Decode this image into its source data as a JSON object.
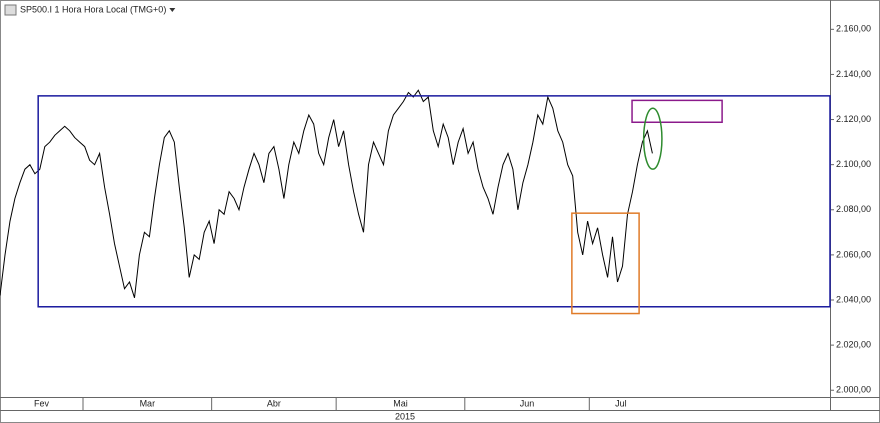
{
  "chart_data": {
    "type": "line",
    "title": "SP500.I 1 Hora Hora Local (TMG+0)",
    "year_label": "2015",
    "xlim": [
      40,
      240
    ],
    "ylim": [
      1997,
      2173
    ],
    "xticks": [
      {
        "value": 32,
        "label": "Fev"
      },
      {
        "value": 60,
        "label": "Mar"
      },
      {
        "value": 91,
        "label": "Abr"
      },
      {
        "value": 121,
        "label": "Mai"
      },
      {
        "value": 152,
        "label": "Jun"
      },
      {
        "value": 182,
        "label": "Jul"
      }
    ],
    "yticks": [
      {
        "value": 2000,
        "label": "2.000,00"
      },
      {
        "value": 2020,
        "label": "2.020,00"
      },
      {
        "value": 2040,
        "label": "2.040,00"
      },
      {
        "value": 2060,
        "label": "2.060,00"
      },
      {
        "value": 2080,
        "label": "2.080,00"
      },
      {
        "value": 2100,
        "label": "2.100,00"
      },
      {
        "value": 2120,
        "label": "2.120,00"
      },
      {
        "value": 2140,
        "label": "2.140,00"
      },
      {
        "value": 2160,
        "label": "2.160,00"
      }
    ],
    "series": [
      {
        "name": "SP500.I",
        "color": "#000000",
        "x": [
          40,
          41.2,
          42.4,
          43.6,
          44.8,
          46,
          47.2,
          48.4,
          49.6,
          50.8,
          52,
          53.2,
          54.4,
          55.6,
          56.8,
          58,
          59.2,
          60.4,
          61.6,
          62.8,
          64,
          65.2,
          66.4,
          67.6,
          68.8,
          70,
          71.2,
          72.4,
          73.6,
          74.8,
          76,
          77.2,
          78.4,
          79.6,
          80.8,
          82,
          83.2,
          84.4,
          85.6,
          86.8,
          88,
          89.2,
          90.4,
          91.6,
          92.8,
          94,
          95.2,
          96.4,
          97.6,
          98.8,
          100,
          101.2,
          102.4,
          103.6,
          104.8,
          106,
          107.2,
          108.4,
          109.6,
          110.8,
          112,
          113.2,
          114.4,
          115.6,
          116.8,
          118,
          119.2,
          120.4,
          121.6,
          122.8,
          124,
          125.2,
          126.4,
          127.6,
          128.8,
          130,
          131.2,
          132.4,
          133.6,
          134.8,
          136,
          137.2,
          138.4,
          139.6,
          140.8,
          142,
          143.2,
          144.4,
          145.6,
          146.8,
          148,
          149.2,
          150.4,
          151.6,
          152.8,
          154,
          155.2,
          156.4,
          157.6,
          158.8,
          160,
          161.2,
          162.4,
          163.6,
          164.8,
          166,
          167.2,
          168.4,
          169.6,
          170.8,
          172,
          173.2,
          174.4,
          175.6,
          176.8,
          178,
          179.2,
          180.4,
          181.6,
          182.8,
          184,
          185.2,
          186.4,
          187.6,
          188.8,
          190,
          191.2,
          192.4,
          193.6,
          194.8,
          196,
          197.2
        ],
        "values": [
          2042,
          2060,
          2075,
          2085,
          2092,
          2098,
          2100,
          2096,
          2098,
          2108,
          2110,
          2113,
          2115,
          2117,
          2115,
          2112,
          2110,
          2108,
          2102,
          2100,
          2105,
          2090,
          2078,
          2065,
          2055,
          2045,
          2048,
          2041,
          2060,
          2070,
          2068,
          2085,
          2100,
          2112,
          2115,
          2110,
          2090,
          2072,
          2050,
          2060,
          2058,
          2070,
          2075,
          2065,
          2080,
          2078,
          2088,
          2085,
          2080,
          2090,
          2098,
          2105,
          2100,
          2092,
          2105,
          2108,
          2098,
          2085,
          2100,
          2110,
          2105,
          2115,
          2122,
          2118,
          2105,
          2100,
          2112,
          2120,
          2108,
          2115,
          2100,
          2088,
          2078,
          2070,
          2100,
          2110,
          2105,
          2100,
          2115,
          2122,
          2125,
          2128,
          2132,
          2130,
          2133,
          2128,
          2130,
          2115,
          2108,
          2118,
          2112,
          2100,
          2110,
          2116,
          2105,
          2110,
          2098,
          2090,
          2085,
          2078,
          2090,
          2100,
          2105,
          2098,
          2080,
          2092,
          2100,
          2110,
          2122,
          2118,
          2130,
          2125,
          2115,
          2110,
          2100,
          2095,
          2070,
          2060,
          2075,
          2065,
          2072,
          2060,
          2050,
          2068,
          2048,
          2055,
          2078,
          2088,
          2100,
          2110,
          2115,
          2105
        ]
      }
    ],
    "shapes": [
      {
        "kind": "rect",
        "color": "#1a1a9e",
        "x": [
          49.2,
          240
        ],
        "y": [
          2037,
          2130.5
        ]
      },
      {
        "kind": "rect",
        "color": "#e07b28",
        "x": [
          177.8,
          194
        ],
        "y": [
          2034,
          2078.5
        ]
      },
      {
        "kind": "rect",
        "color": "#8b1a8b",
        "x": [
          192.3,
          214
        ],
        "y": [
          2118.8,
          2128.5
        ]
      },
      {
        "kind": "ellipse",
        "color": "#2e8b2e",
        "x": [
          195.1,
          199.5
        ],
        "y": [
          2098,
          2125
        ]
      }
    ]
  }
}
